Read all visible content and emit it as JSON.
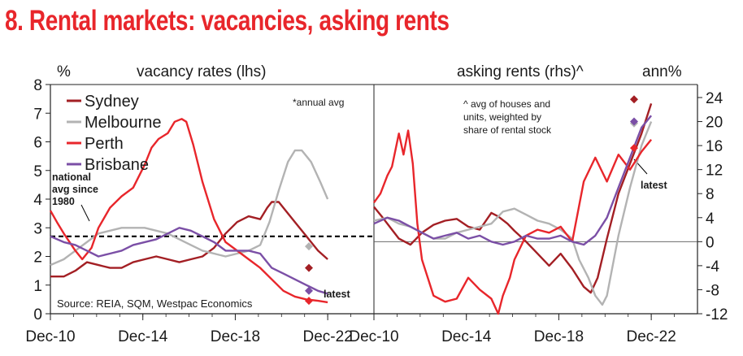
{
  "title": "8. Rental markets: vacancies, asking rents",
  "chart_data": [
    {
      "type": "line",
      "subtitle": "vacancy rates (lhs)",
      "ylabel": "%",
      "ylim": [
        0,
        8
      ],
      "yticks": [
        "0",
        "1",
        "2",
        "3",
        "4",
        "5",
        "6",
        "7",
        "8"
      ],
      "xlim": [
        2010.92,
        2024.92
      ],
      "xticks": [
        {
          "label": "Dec-10",
          "x": 2010.92
        },
        {
          "label": "Dec-14",
          "x": 2014.92
        },
        {
          "label": "Dec-18",
          "x": 2018.92
        },
        {
          "label": "Dec-22",
          "x": 2022.92
        }
      ],
      "reference_line": {
        "y": 2.7,
        "label": [
          "national",
          "avg since",
          "1980"
        ]
      },
      "note": "*annual avg",
      "source": "Source: REIA, SQM, Westpac Economics",
      "latest_label": "latest",
      "series": [
        {
          "name": "Sydney",
          "color": "#a31f24",
          "latest": 1.6,
          "x": [
            2010.92,
            2011.5,
            2012.0,
            2012.5,
            2013.0,
            2013.5,
            2014.0,
            2014.5,
            2015.0,
            2015.5,
            2016.0,
            2016.5,
            2017.0,
            2017.5,
            2018.0,
            2018.5,
            2019.0,
            2019.5,
            2020.0,
            2020.3,
            2020.5,
            2020.8,
            2021.0,
            2021.5,
            2022.0,
            2022.5,
            2022.92
          ],
          "y": [
            1.3,
            1.3,
            1.5,
            1.8,
            1.7,
            1.6,
            1.6,
            1.8,
            1.9,
            2.0,
            1.9,
            1.8,
            1.9,
            2.0,
            2.3,
            2.8,
            3.2,
            3.4,
            3.3,
            3.7,
            3.9,
            3.9,
            3.7,
            3.2,
            2.7,
            2.2,
            1.9
          ]
        },
        {
          "name": "Melbourne",
          "color": "#b3b3b3",
          "latest": 2.35,
          "x": [
            2010.92,
            2011.5,
            2012.0,
            2012.5,
            2013.0,
            2013.5,
            2014.0,
            2014.5,
            2015.0,
            2015.5,
            2016.0,
            2016.5,
            2017.0,
            2017.5,
            2018.0,
            2018.5,
            2019.0,
            2019.5,
            2020.0,
            2020.4,
            2020.8,
            2021.2,
            2021.5,
            2021.8,
            2022.2,
            2022.6,
            2022.92
          ],
          "y": [
            1.7,
            1.9,
            2.2,
            2.5,
            2.8,
            2.9,
            3.0,
            3.0,
            3.0,
            2.9,
            2.8,
            2.6,
            2.4,
            2.2,
            2.1,
            2.0,
            2.1,
            2.2,
            2.4,
            3.2,
            4.3,
            5.3,
            5.7,
            5.7,
            5.3,
            4.6,
            4.0
          ]
        },
        {
          "name": "Perth",
          "color": "#e8262b",
          "latest": 0.45,
          "x": [
            2010.92,
            2011.2,
            2011.5,
            2012.0,
            2012.3,
            2012.7,
            2013.0,
            2013.5,
            2014.0,
            2014.5,
            2015.0,
            2015.3,
            2015.6,
            2016.0,
            2016.3,
            2016.6,
            2016.8,
            2017.1,
            2017.5,
            2018.0,
            2018.5,
            2019.0,
            2019.5,
            2020.0,
            2020.5,
            2021.0,
            2021.5,
            2022.0,
            2022.5,
            2022.92
          ],
          "y": [
            3.6,
            3.2,
            2.8,
            2.2,
            1.9,
            2.3,
            3.0,
            3.7,
            4.1,
            4.4,
            5.2,
            5.8,
            6.1,
            6.3,
            6.7,
            6.8,
            6.7,
            5.9,
            4.6,
            3.3,
            2.5,
            2.2,
            1.9,
            1.6,
            1.2,
            0.8,
            0.6,
            0.5,
            0.45,
            0.4
          ]
        },
        {
          "name": "Brisbane",
          "color": "#7b4fa6",
          "latest": 0.8,
          "x": [
            2010.92,
            2011.5,
            2012.0,
            2012.5,
            2013.0,
            2013.5,
            2014.0,
            2014.5,
            2015.0,
            2015.5,
            2016.0,
            2016.5,
            2017.0,
            2017.5,
            2018.0,
            2018.5,
            2019.0,
            2019.5,
            2020.0,
            2020.5,
            2021.0,
            2021.5,
            2022.0,
            2022.5,
            2022.92
          ],
          "y": [
            2.7,
            2.5,
            2.4,
            2.2,
            2.0,
            2.1,
            2.2,
            2.4,
            2.5,
            2.6,
            2.8,
            3.0,
            2.9,
            2.7,
            2.5,
            2.2,
            2.2,
            2.2,
            2.1,
            1.6,
            1.4,
            1.2,
            1.0,
            0.8,
            0.7
          ]
        }
      ]
    },
    {
      "type": "line",
      "subtitle": "asking rents (rhs)^",
      "ylabel": "ann%",
      "ylim": [
        -12,
        25
      ],
      "yticks": [
        "-12",
        "-8",
        "-4",
        "0",
        "4",
        "8",
        "12",
        "16",
        "20",
        "24"
      ],
      "xlim": [
        2010.92,
        2024.92
      ],
      "xticks": [
        {
          "label": "Dec-10",
          "x": 2010.92
        },
        {
          "label": "Dec-14",
          "x": 2014.92
        },
        {
          "label": "Dec-18",
          "x": 2018.92
        },
        {
          "label": "Dec-22",
          "x": 2022.92
        }
      ],
      "note": [
        "^ avg of houses and",
        "units, weighted by",
        "share of rental stock"
      ],
      "latest_label": "latest",
      "series": [
        {
          "name": "Sydney",
          "color": "#a31f24",
          "latest": 23.7,
          "x": [
            2010.92,
            2011.3,
            2011.7,
            2012.0,
            2012.5,
            2013.0,
            2013.5,
            2014.0,
            2014.5,
            2015.0,
            2015.5,
            2016.0,
            2016.3,
            2016.7,
            2017.0,
            2017.5,
            2018.0,
            2018.5,
            2019.0,
            2019.5,
            2020.0,
            2020.3,
            2020.6,
            2021.0,
            2021.5,
            2022.0,
            2022.5,
            2022.92
          ],
          "y": [
            5.8,
            4.0,
            2.0,
            0.5,
            -0.5,
            1.5,
            2.8,
            3.5,
            3.8,
            2.5,
            2.0,
            4.8,
            4.2,
            3.0,
            1.8,
            0.0,
            -2.0,
            -4.0,
            -2.0,
            -4.5,
            -7.5,
            -8.5,
            -6.0,
            0.5,
            8.0,
            13.0,
            18.0,
            23.0
          ]
        },
        {
          "name": "Melbourne",
          "color": "#b3b3b3",
          "latest": 19.7,
          "x": [
            2010.92,
            2011.5,
            2012.0,
            2012.5,
            2013.0,
            2013.5,
            2014.0,
            2014.5,
            2015.0,
            2015.5,
            2016.0,
            2016.5,
            2017.0,
            2017.5,
            2018.0,
            2018.5,
            2019.0,
            2019.5,
            2019.8,
            2020.2,
            2020.5,
            2020.8,
            2021.0,
            2021.5,
            2022.0,
            2022.5,
            2022.92
          ],
          "y": [
            3.5,
            4.0,
            3.0,
            2.5,
            1.5,
            0.5,
            0.5,
            1.5,
            2.0,
            2.5,
            3.0,
            5.0,
            5.5,
            4.5,
            3.5,
            3.0,
            2.0,
            0.5,
            -3.0,
            -6.0,
            -9.0,
            -10.5,
            -9.0,
            1.0,
            9.0,
            16.0,
            20.0
          ]
        },
        {
          "name": "Perth",
          "color": "#e8262b",
          "latest": 15.6,
          "x": [
            2010.92,
            2011.2,
            2011.5,
            2011.7,
            2012.0,
            2012.2,
            2012.4,
            2012.6,
            2012.8,
            2013.0,
            2013.5,
            2014.0,
            2014.5,
            2015.0,
            2015.5,
            2016.0,
            2016.3,
            2016.5,
            2016.8,
            2017.0,
            2017.5,
            2018.0,
            2018.5,
            2019.0,
            2019.5,
            2020.0,
            2020.5,
            2021.0,
            2021.5,
            2022.0,
            2022.5,
            2022.92
          ],
          "y": [
            6.5,
            8.0,
            11.0,
            12.5,
            18.0,
            14.5,
            18.5,
            13.0,
            3.0,
            -3.0,
            -9.0,
            -10.0,
            -9.5,
            -6.0,
            -8.0,
            -9.5,
            -12.0,
            -9.0,
            -6.0,
            -3.0,
            1.0,
            2.0,
            1.5,
            2.5,
            0.0,
            10.0,
            14.0,
            10.0,
            14.5,
            12.0,
            15.0,
            17.0
          ]
        },
        {
          "name": "Brisbane",
          "color": "#7b4fa6",
          "latest": 20.0,
          "x": [
            2010.92,
            2011.5,
            2012.0,
            2012.5,
            2013.0,
            2013.5,
            2014.0,
            2014.5,
            2015.0,
            2015.5,
            2016.0,
            2016.5,
            2017.0,
            2017.5,
            2018.0,
            2018.5,
            2019.0,
            2019.5,
            2020.0,
            2020.5,
            2021.0,
            2021.5,
            2022.0,
            2022.5,
            2022.92
          ],
          "y": [
            3.0,
            4.0,
            3.5,
            2.5,
            1.5,
            0.5,
            1.0,
            1.5,
            0.5,
            1.0,
            0.0,
            -0.5,
            0.0,
            1.0,
            0.5,
            0.5,
            1.0,
            0.0,
            -0.5,
            1.0,
            4.0,
            9.0,
            14.0,
            19.0,
            21.0
          ]
        }
      ]
    }
  ]
}
